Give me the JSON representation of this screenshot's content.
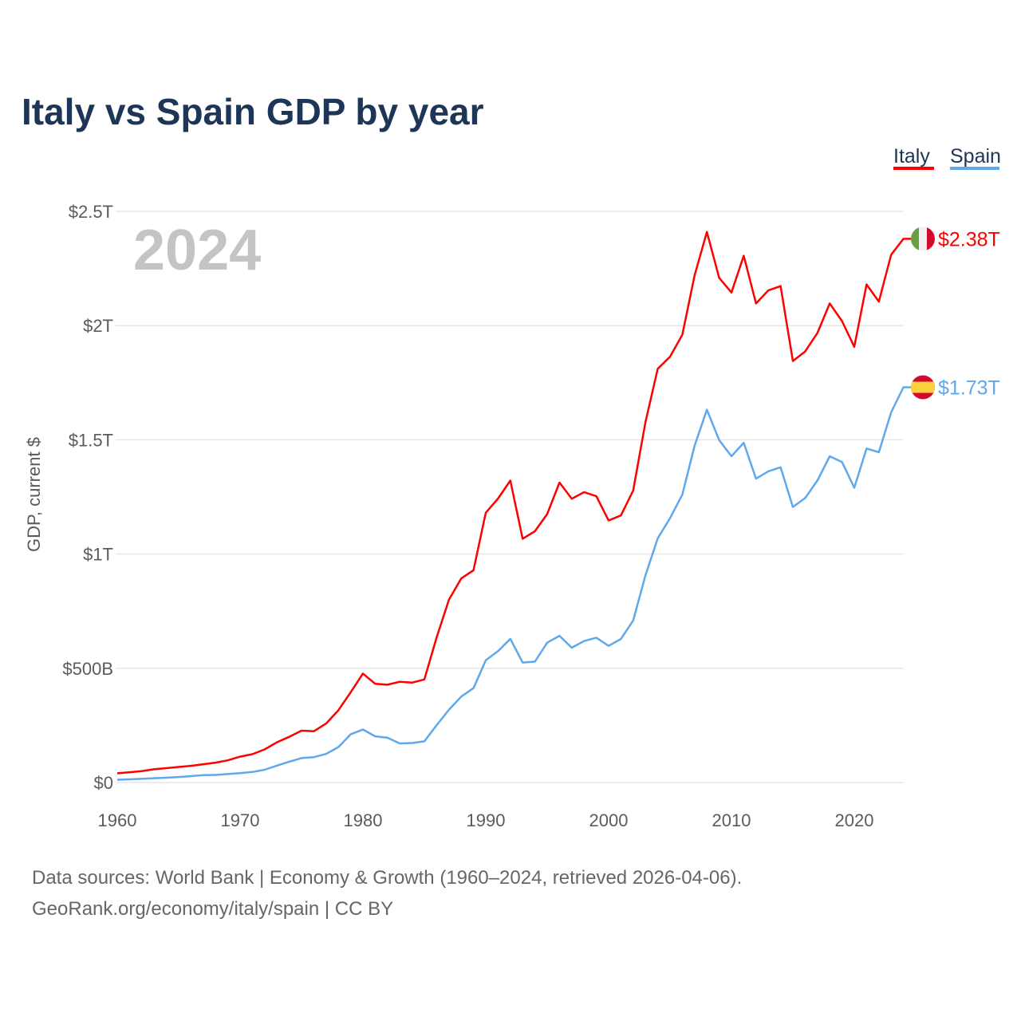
{
  "title": "Italy vs Spain GDP by year",
  "year_watermark": "2024",
  "footer": {
    "line1": "Data sources: World Bank | Economy & Growth (1960–2024, retrieved 2026-04-06).",
    "line2": "GeoRank.org/economy/italy/spain | CC BY"
  },
  "chart_data": {
    "type": "line",
    "title": "Italy vs Spain GDP by year",
    "xlabel": "",
    "ylabel": "GDP, current $",
    "xlim": [
      1960,
      2024
    ],
    "ylim": [
      0,
      2500
    ],
    "units": "billions USD",
    "x_ticks": [
      {
        "value": 1960,
        "label": "1960"
      },
      {
        "value": 1970,
        "label": "1970"
      },
      {
        "value": 1980,
        "label": "1980"
      },
      {
        "value": 1990,
        "label": "1990"
      },
      {
        "value": 2000,
        "label": "2000"
      },
      {
        "value": 2010,
        "label": "2010"
      },
      {
        "value": 2020,
        "label": "2020"
      }
    ],
    "y_ticks": [
      {
        "value": 0,
        "label": "$0"
      },
      {
        "value": 500,
        "label": "$500B"
      },
      {
        "value": 1000,
        "label": "$1T"
      },
      {
        "value": 1500,
        "label": "$1.5T"
      },
      {
        "value": 2000,
        "label": "$2T"
      },
      {
        "value": 2500,
        "label": "$2.5T"
      }
    ],
    "grid": true,
    "legend_position": "top-right",
    "x_start": 1960,
    "series": [
      {
        "name": "Italy",
        "color": "#ff0000",
        "end_label": "$2.38T",
        "flag": "italy-flag",
        "values": [
          40,
          45,
          50,
          58,
          63,
          68,
          73,
          80,
          87,
          97,
          113,
          124,
          145,
          176,
          200,
          227,
          224,
          258,
          316,
          395,
          477,
          432,
          428,
          441,
          437,
          451,
          635,
          800,
          893,
          929,
          1181,
          1243,
          1322,
          1067,
          1100,
          1175,
          1313,
          1242,
          1271,
          1253,
          1147,
          1169,
          1278,
          1578,
          1811,
          1864,
          1960,
          2220,
          2410,
          2209,
          2145,
          2306,
          2097,
          2154,
          2173,
          1845,
          1887,
          1968,
          2097,
          2020,
          1907,
          2180,
          2105,
          2310,
          2380
        ]
      },
      {
        "name": "Spain",
        "color": "#5fa8ec",
        "end_label": "$1.73T",
        "flag": "spain-flag",
        "values": [
          12,
          14,
          16,
          19,
          21,
          24,
          28,
          32,
          33,
          37,
          41,
          46,
          56,
          74,
          91,
          107,
          111,
          125,
          155,
          211,
          232,
          202,
          196,
          171,
          173,
          180,
          251,
          318,
          376,
          413,
          535,
          575,
          629,
          525,
          529,
          612,
          642,
          590,
          619,
          634,
          598,
          628,
          709,
          907,
          1069,
          1157,
          1260,
          1474,
          1632,
          1499,
          1428,
          1487,
          1330,
          1362,
          1380,
          1206,
          1245,
          1322,
          1428,
          1403,
          1290,
          1462,
          1446,
          1620,
          1730
        ]
      }
    ]
  }
}
